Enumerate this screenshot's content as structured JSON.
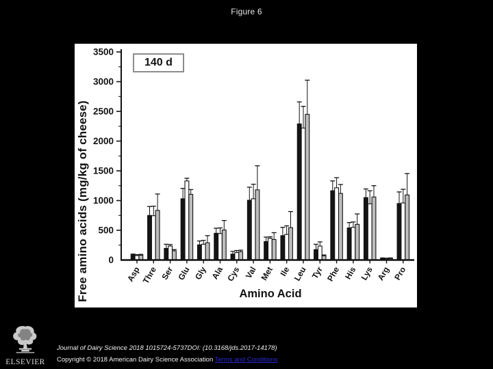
{
  "figure_title": "Figure 6",
  "chart_data": {
    "type": "bar",
    "panel_label": "140 d",
    "xlabel": "Amino Acid",
    "ylabel": "Free amino acids (mg/kg of cheese)",
    "ylim": [
      0,
      3500
    ],
    "yticks": {
      "major_step": 500,
      "minor_step": 250
    },
    "grid": false,
    "legend": "none",
    "error_bars": "upper only",
    "categories": [
      "Asp",
      "Thre",
      "Ser",
      "Glu",
      "Gly",
      "Ala",
      "Cys",
      "Val",
      "Met",
      "Ile",
      "Leu",
      "Tyr",
      "Phe",
      "His",
      "Lys",
      "Arg",
      "Pro"
    ],
    "series": [
      {
        "name": "black-bar-series",
        "fill": "#141414",
        "values": [
          85,
          750,
          195,
          1030,
          255,
          450,
          100,
          1005,
          310,
          410,
          2290,
          175,
          1165,
          540,
          1050,
          25,
          950
        ],
        "errors_up": [
          15,
          150,
          70,
          175,
          65,
          85,
          45,
          220,
          75,
          140,
          370,
          90,
          165,
          90,
          145,
          10,
          195
        ]
      },
      {
        "name": "white-bar-series",
        "fill": "#ffffff",
        "values": [
          75,
          745,
          235,
          1330,
          265,
          445,
          125,
          1030,
          365,
          430,
          2220,
          235,
          1215,
          550,
          945,
          20,
          960
        ],
        "errors_up": [
          15,
          160,
          25,
          45,
          65,
          95,
          35,
          245,
          25,
          145,
          365,
          70,
          170,
          90,
          220,
          10,
          230
        ]
      },
      {
        "name": "gray-bar-series",
        "fill": "#bdbdbd",
        "values": [
          80,
          835,
          155,
          1105,
          290,
          505,
          140,
          1180,
          345,
          545,
          2450,
          70,
          1120,
          600,
          1060,
          25,
          1095
        ],
        "errors_up": [
          15,
          275,
          20,
          80,
          120,
          160,
          25,
          405,
          115,
          270,
          575,
          15,
          150,
          175,
          190,
          10,
          360
        ]
      }
    ]
  },
  "footer": {
    "logo_text": "ELSEVIER",
    "journal_line": "Journal of Dairy Science 2018 1015724-5737DOI: (10.3168/jds.2017-14178)",
    "copyright_line": "Copyright © 2018 American Dairy Science Association ",
    "terms_link_label": "Terms and Conditions",
    "link_color": "#2929d6"
  },
  "colors": {
    "background": "#000000",
    "panel": "#ffffff",
    "axis": "#111111",
    "badge_border": "#8c8c8c"
  }
}
